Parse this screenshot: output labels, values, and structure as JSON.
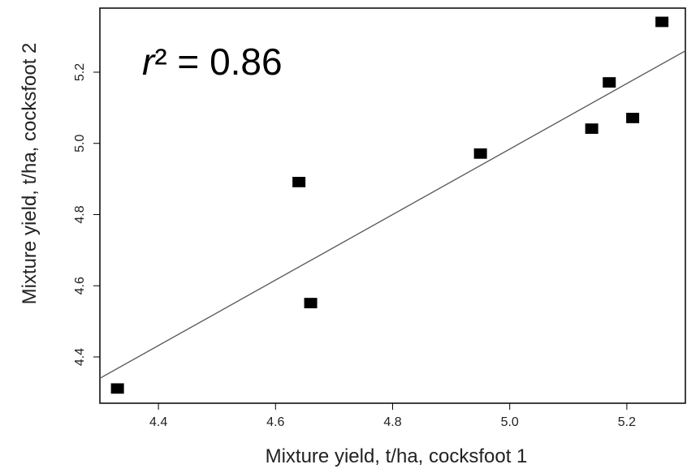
{
  "chart_data": {
    "type": "scatter",
    "title": "",
    "xlabel": "Mixture yield, t/ha, cocksfoot 1",
    "ylabel": "Mixture yield, t/ha, cocksfoot 2",
    "xlim": [
      4.3,
      5.3
    ],
    "ylim": [
      4.27,
      5.38
    ],
    "xticks": [
      "4.4",
      "4.6",
      "4.8",
      "5.0",
      "5.2"
    ],
    "yticks": [
      "4.4",
      "4.6",
      "4.8",
      "5.0",
      "5.2"
    ],
    "grid": false,
    "annotation": {
      "italic_part": "r",
      "rest": "² = 0.86"
    },
    "series": [
      {
        "marker": "square",
        "color": "#000000",
        "points": [
          {
            "x": 4.33,
            "y": 4.31
          },
          {
            "x": 4.64,
            "y": 4.89
          },
          {
            "x": 4.66,
            "y": 4.55
          },
          {
            "x": 4.95,
            "y": 4.97
          },
          {
            "x": 5.14,
            "y": 5.04
          },
          {
            "x": 5.17,
            "y": 5.17
          },
          {
            "x": 5.21,
            "y": 5.07
          },
          {
            "x": 5.26,
            "y": 5.34
          }
        ]
      }
    ],
    "fit_line": {
      "color": "#555555",
      "x": [
        4.3,
        5.3
      ],
      "y": [
        4.34,
        5.26
      ]
    }
  }
}
